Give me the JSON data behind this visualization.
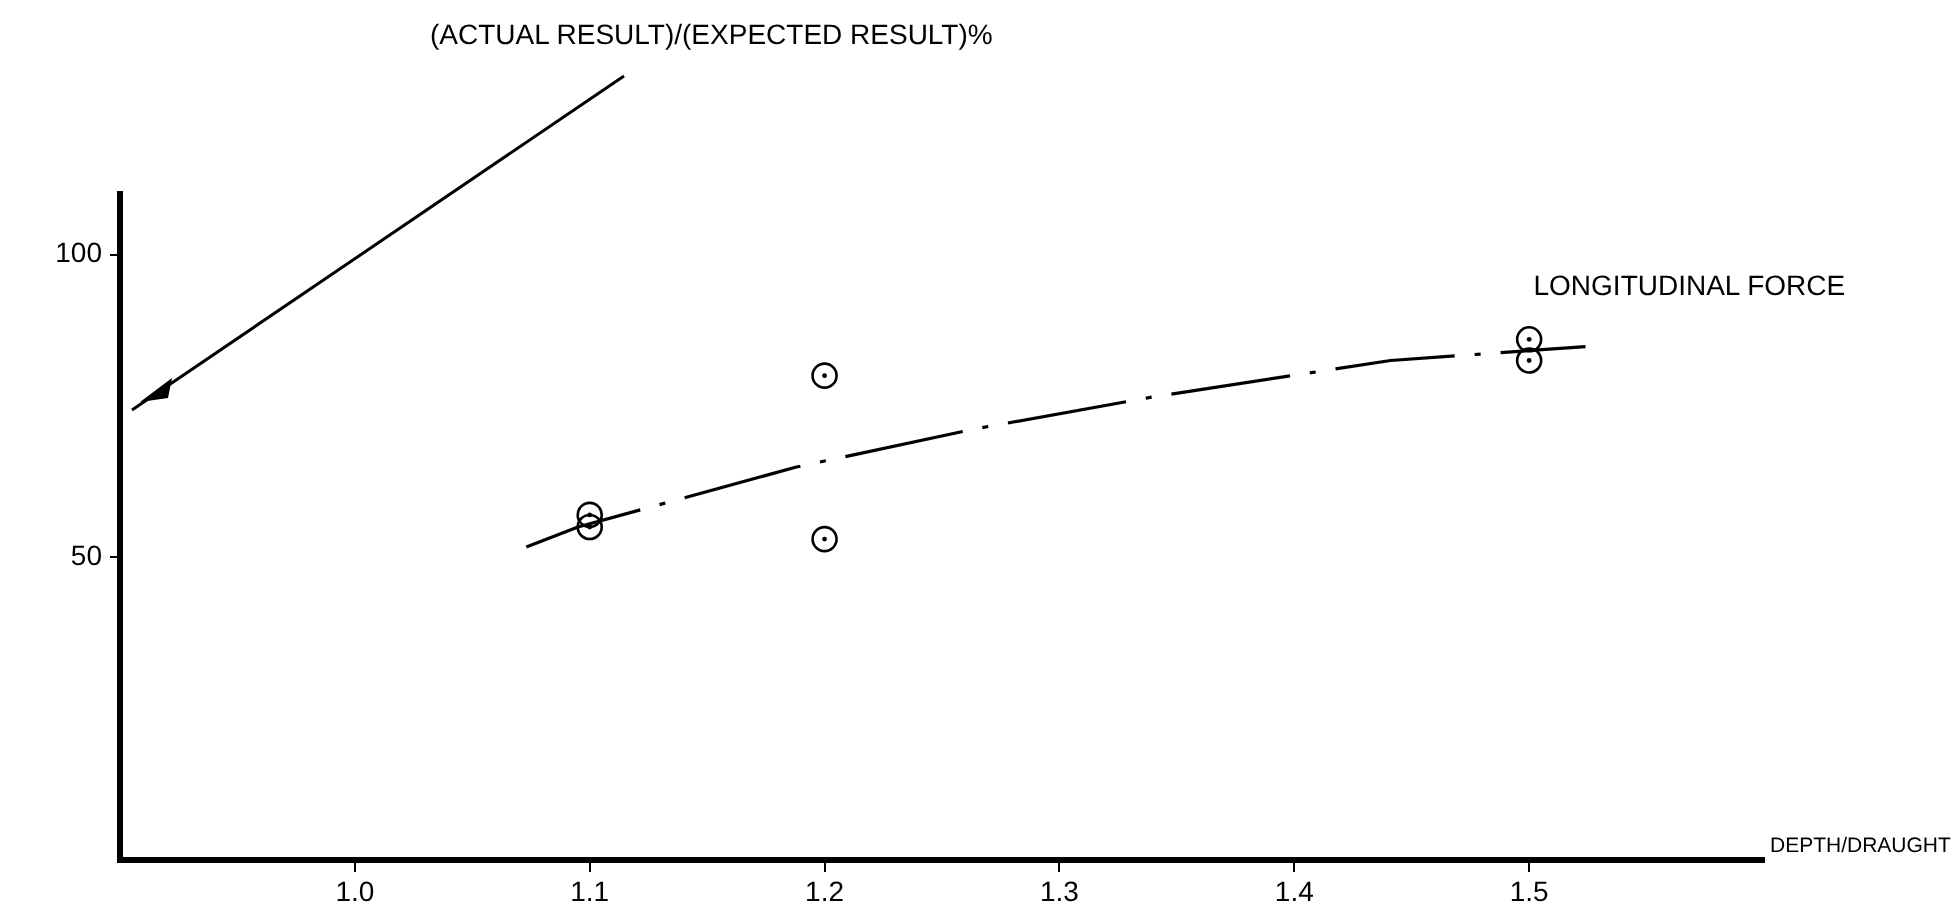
{
  "chart_data": {
    "type": "scatter",
    "annotations": [
      "(ACTUAL RESULT)/(EXPECTED RESULT)%"
    ],
    "xlabel": "DEPTH/DRAUGHT",
    "xlim": [
      0.9,
      1.6
    ],
    "ylim": [
      0,
      110
    ],
    "xticks": [
      {
        "value": 1.0,
        "label": "1.0"
      },
      1.1,
      1.2,
      1.3,
      1.4,
      1.5
    ],
    "yticks": [
      50,
      100
    ],
    "series": [
      {
        "color": "#000000",
        "marker": "circle",
        "x": [
          1.1,
          1.1,
          1.2,
          1.2,
          1.5,
          1.5
        ],
        "values": [
          57,
          55,
          80,
          53,
          86,
          82.5
        ]
      },
      {
        "type": "line",
        "name": "LONGITUDINAL FORCE",
        "color": "#000000",
        "marker": "none",
        "line_style": "dashed",
        "x": [
          1.073,
          1.095,
          1.188,
          1.264,
          1.34,
          1.441,
          1.524
        ],
        "values": [
          51.7,
          55,
          64.9,
          71.2,
          76.5,
          82.5,
          84.8
        ]
      }
    ]
  }
}
